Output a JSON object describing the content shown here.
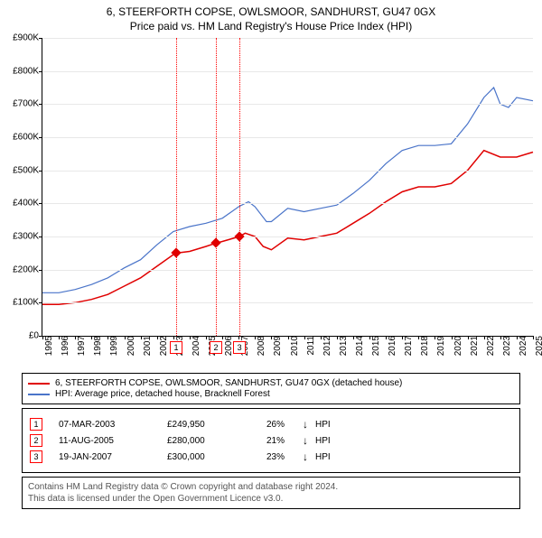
{
  "title_line1": "6, STEERFORTH COPSE, OWLSMOOR, SANDHURST, GU47 0GX",
  "title_line2": "Price paid vs. HM Land Registry's House Price Index (HPI)",
  "chart": {
    "type": "line",
    "background_color": "#ffffff",
    "grid_color": "#e8e8e8",
    "axis_color": "#000000",
    "ylim": [
      0,
      900000
    ],
    "ytick_step": 100000,
    "ytick_labels": [
      "£0",
      "£100K",
      "£200K",
      "£300K",
      "£400K",
      "£500K",
      "£600K",
      "£700K",
      "£800K",
      "£900K"
    ],
    "xlim": [
      1995,
      2025
    ],
    "xticks": [
      1995,
      1996,
      1997,
      1998,
      1999,
      2000,
      2001,
      2002,
      2003,
      2004,
      2005,
      2006,
      2007,
      2008,
      2009,
      2010,
      2011,
      2012,
      2013,
      2014,
      2015,
      2016,
      2017,
      2018,
      2019,
      2020,
      2021,
      2022,
      2023,
      2024,
      2025
    ],
    "label_fontsize": 10,
    "series": [
      {
        "name": "property",
        "color": "#e00000",
        "line_width": 1.5,
        "points": [
          [
            1995,
            95000
          ],
          [
            1996,
            95000
          ],
          [
            1997,
            100000
          ],
          [
            1998,
            110000
          ],
          [
            1999,
            125000
          ],
          [
            2000,
            150000
          ],
          [
            2001,
            175000
          ],
          [
            2002,
            210000
          ],
          [
            2003,
            245000
          ],
          [
            2003.18,
            249950
          ],
          [
            2004,
            255000
          ],
          [
            2005,
            270000
          ],
          [
            2005.61,
            280000
          ],
          [
            2006,
            285000
          ],
          [
            2007.05,
            300000
          ],
          [
            2007.4,
            310000
          ],
          [
            2008,
            300000
          ],
          [
            2008.5,
            270000
          ],
          [
            2009,
            260000
          ],
          [
            2010,
            295000
          ],
          [
            2011,
            290000
          ],
          [
            2012,
            300000
          ],
          [
            2013,
            310000
          ],
          [
            2014,
            340000
          ],
          [
            2015,
            370000
          ],
          [
            2016,
            405000
          ],
          [
            2017,
            435000
          ],
          [
            2018,
            450000
          ],
          [
            2019,
            450000
          ],
          [
            2020,
            460000
          ],
          [
            2021,
            500000
          ],
          [
            2022,
            560000
          ],
          [
            2023,
            540000
          ],
          [
            2024,
            540000
          ],
          [
            2025,
            555000
          ]
        ]
      },
      {
        "name": "hpi",
        "color": "#4a74c9",
        "line_width": 1.2,
        "points": [
          [
            1995,
            130000
          ],
          [
            1996,
            130000
          ],
          [
            1997,
            140000
          ],
          [
            1998,
            155000
          ],
          [
            1999,
            175000
          ],
          [
            2000,
            205000
          ],
          [
            2001,
            230000
          ],
          [
            2002,
            275000
          ],
          [
            2003,
            315000
          ],
          [
            2004,
            330000
          ],
          [
            2005,
            340000
          ],
          [
            2006,
            355000
          ],
          [
            2007,
            390000
          ],
          [
            2007.6,
            405000
          ],
          [
            2008,
            390000
          ],
          [
            2008.7,
            345000
          ],
          [
            2009,
            345000
          ],
          [
            2010,
            385000
          ],
          [
            2011,
            375000
          ],
          [
            2012,
            385000
          ],
          [
            2013,
            395000
          ],
          [
            2014,
            430000
          ],
          [
            2015,
            470000
          ],
          [
            2016,
            520000
          ],
          [
            2017,
            560000
          ],
          [
            2018,
            575000
          ],
          [
            2019,
            575000
          ],
          [
            2020,
            580000
          ],
          [
            2021,
            640000
          ],
          [
            2022,
            720000
          ],
          [
            2022.6,
            750000
          ],
          [
            2023,
            700000
          ],
          [
            2023.5,
            690000
          ],
          [
            2024,
            720000
          ],
          [
            2025,
            710000
          ]
        ]
      }
    ],
    "sale_markers": [
      {
        "n": "1",
        "x": 2003.18,
        "y": 249950
      },
      {
        "n": "2",
        "x": 2005.61,
        "y": 280000
      },
      {
        "n": "3",
        "x": 2007.05,
        "y": 300000
      }
    ],
    "marker_border": "#ff0000",
    "marker_fill": "#e00000",
    "vline_color": "#ff0000"
  },
  "legend": {
    "items": [
      {
        "color": "#e00000",
        "label": "6, STEERFORTH COPSE, OWLSMOOR, SANDHURST, GU47 0GX (detached house)"
      },
      {
        "color": "#4a74c9",
        "label": "HPI: Average price, detached house, Bracknell Forest"
      }
    ]
  },
  "sales": [
    {
      "n": "1",
      "date": "07-MAR-2003",
      "price": "£249,950",
      "pct": "26%",
      "arrow": "↓",
      "cmp": "HPI"
    },
    {
      "n": "2",
      "date": "11-AUG-2005",
      "price": "£280,000",
      "pct": "21%",
      "arrow": "↓",
      "cmp": "HPI"
    },
    {
      "n": "3",
      "date": "19-JAN-2007",
      "price": "£300,000",
      "pct": "23%",
      "arrow": "↓",
      "cmp": "HPI"
    }
  ],
  "attribution": {
    "line1": "Contains HM Land Registry data © Crown copyright and database right 2024.",
    "line2": "This data is licensed under the Open Government Licence v3.0."
  }
}
